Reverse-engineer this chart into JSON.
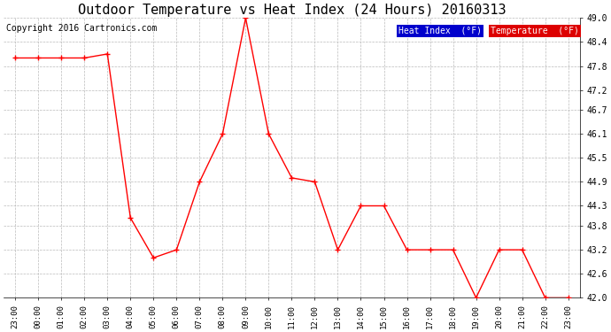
{
  "title": "Outdoor Temperature vs Heat Index (24 Hours) 20160313",
  "copyright": "Copyright 2016 Cartronics.com",
  "x_labels": [
    "23:00",
    "00:00",
    "01:00",
    "02:00",
    "03:00",
    "04:00",
    "05:00",
    "06:00",
    "07:00",
    "08:00",
    "09:00",
    "10:00",
    "11:00",
    "12:00",
    "13:00",
    "14:00",
    "15:00",
    "16:00",
    "17:00",
    "18:00",
    "19:00",
    "20:00",
    "21:00",
    "22:00",
    "23:00"
  ],
  "temperature": [
    48.0,
    48.0,
    48.0,
    48.0,
    48.1,
    44.0,
    43.0,
    43.2,
    44.9,
    46.1,
    49.0,
    46.1,
    45.0,
    44.9,
    43.2,
    44.3,
    44.3,
    43.2,
    43.2,
    43.2,
    42.0,
    43.2,
    43.2,
    42.0,
    42.0
  ],
  "heat_index": [
    48.0,
    48.0,
    48.0,
    48.0,
    48.1,
    44.0,
    43.0,
    43.2,
    44.9,
    46.1,
    49.0,
    46.1,
    45.0,
    44.9,
    43.2,
    44.3,
    44.3,
    43.2,
    43.2,
    43.2,
    42.0,
    43.2,
    43.2,
    42.0,
    42.0
  ],
  "temp_color": "#ff0000",
  "heat_index_color": "#000000",
  "ylim_min": 42.0,
  "ylim_max": 49.0,
  "yticks": [
    42.0,
    42.6,
    43.2,
    43.8,
    44.3,
    44.9,
    45.5,
    46.1,
    46.7,
    47.2,
    47.8,
    48.4,
    49.0
  ],
  "background_color": "#ffffff",
  "grid_color": "#bbbbbb",
  "title_fontsize": 11,
  "legend_heat_index_bg": "#0000cc",
  "legend_temp_bg": "#dd0000",
  "legend_text_color": "#ffffff",
  "copyright_fontsize": 7
}
